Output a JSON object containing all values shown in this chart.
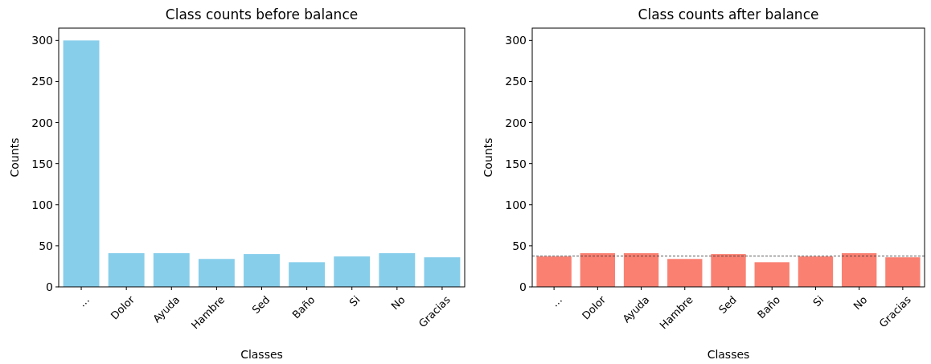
{
  "chart_data": [
    {
      "type": "bar",
      "title": "Class counts before balance",
      "xlabel": "Classes",
      "ylabel": "Counts",
      "categories": [
        "...",
        "Dolor",
        "Ayuda",
        "Hambre",
        "Sed",
        "Baño",
        "Si",
        "No",
        "Gracias"
      ],
      "values": [
        300,
        41,
        41,
        34,
        40,
        30,
        37,
        41,
        36
      ],
      "color": "#87ceeb",
      "ylim": [
        0,
        315
      ],
      "yticks": [
        0,
        50,
        100,
        150,
        200,
        250,
        300
      ]
    },
    {
      "type": "bar",
      "title": "Class counts after balance",
      "xlabel": "Classes",
      "ylabel": "Counts",
      "categories": [
        "...",
        "Dolor",
        "Ayuda",
        "Hambre",
        "Sed",
        "Baño",
        "Si",
        "No",
        "Gracias"
      ],
      "values": [
        37,
        41,
        41,
        34,
        40,
        30,
        37,
        41,
        36
      ],
      "color": "#fa8072",
      "ylim": [
        0,
        315
      ],
      "yticks": [
        0,
        50,
        100,
        150,
        200,
        250,
        300
      ],
      "ref_lines": [
        {
          "axis": "y",
          "value": 37.4,
          "color": "#333333",
          "line_style": "dashed"
        }
      ]
    }
  ]
}
